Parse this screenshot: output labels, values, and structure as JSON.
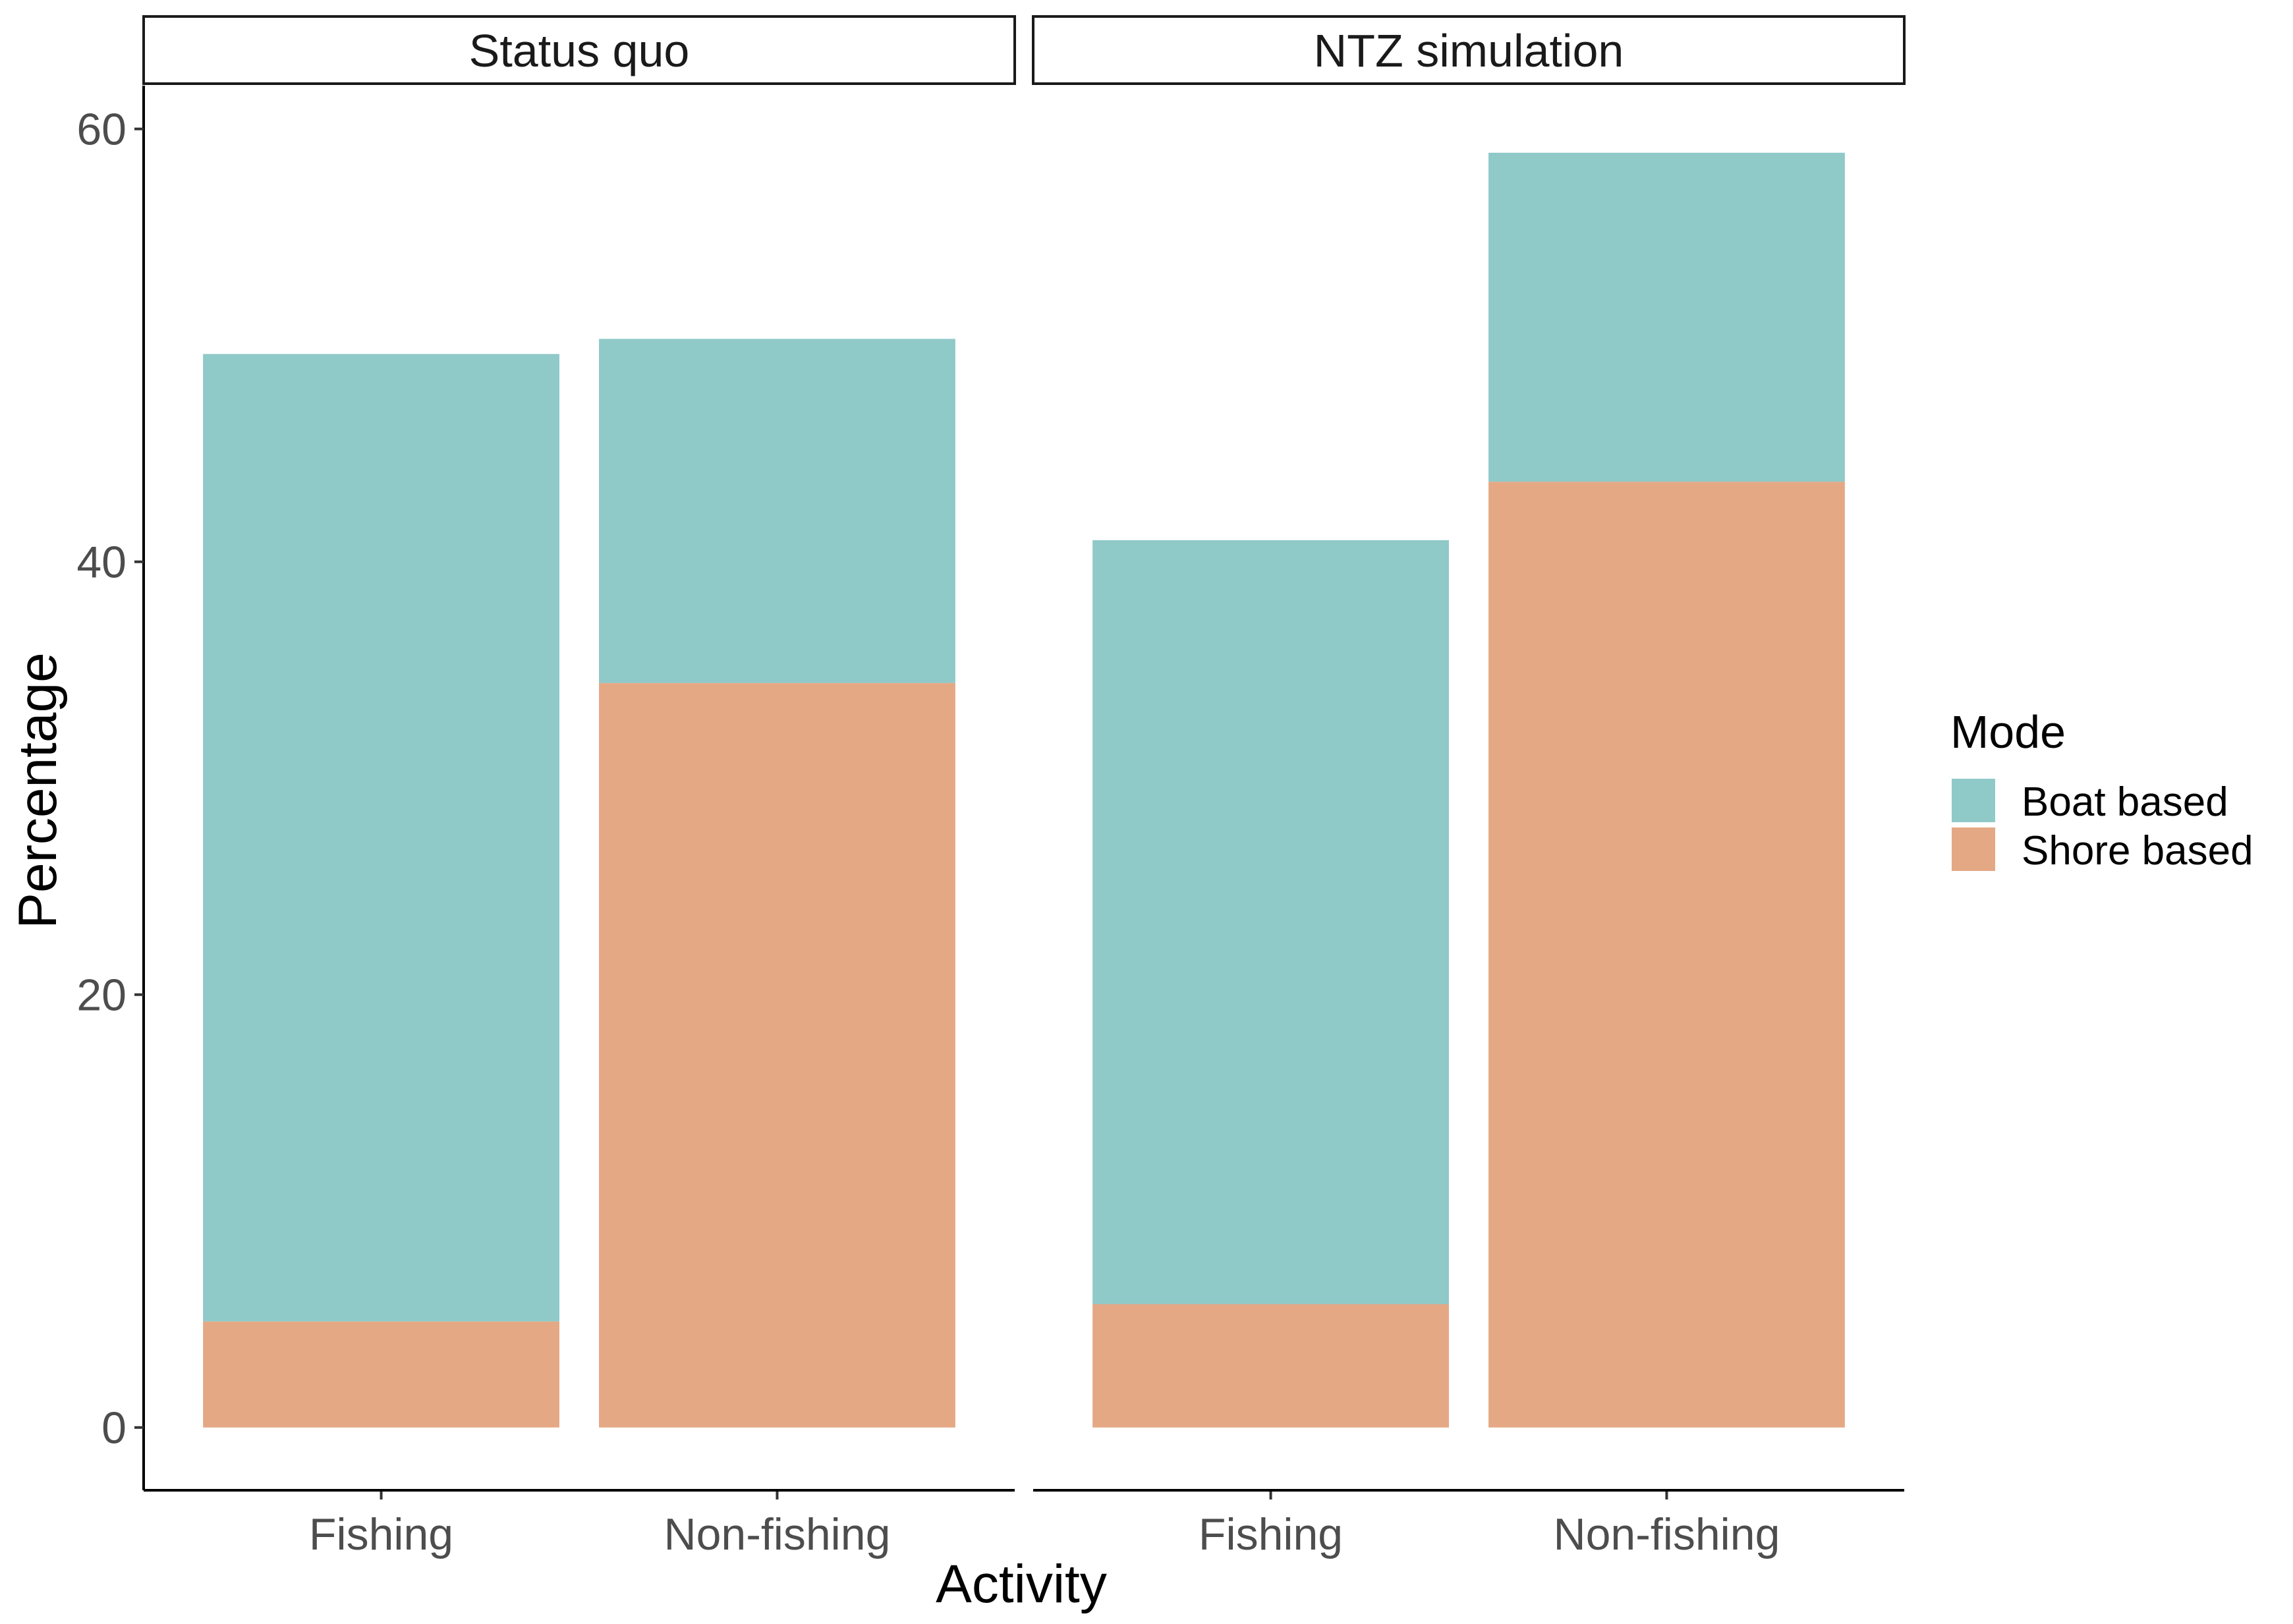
{
  "chart_data": {
    "type": "bar",
    "stacked": true,
    "facets": [
      "Status quo",
      "NTZ simulation"
    ],
    "categories": [
      "Fishing",
      "Non-fishing"
    ],
    "xlabel": "Activity",
    "ylabel": "Percentage",
    "ylim": [
      -2.9,
      62
    ],
    "yticks": [
      0,
      20,
      40,
      60
    ],
    "grid": false,
    "legend": {
      "title": "Mode",
      "position": "right",
      "entries": [
        "Boat based",
        "Shore based"
      ]
    },
    "series": [
      {
        "name": "Shore based",
        "color": "#e5a884",
        "values": {
          "Status quo": [
            4.9,
            34.4
          ],
          "NTZ simulation": [
            5.7,
            43.7
          ]
        }
      },
      {
        "name": "Boat based",
        "color": "#8fc9c8",
        "values": {
          "Status quo": [
            44.7,
            15.9
          ],
          "NTZ simulation": [
            35.3,
            15.2
          ]
        }
      }
    ],
    "totals": {
      "Status quo": [
        49.6,
        50.3
      ],
      "NTZ simulation": [
        41.0,
        58.9
      ]
    }
  }
}
